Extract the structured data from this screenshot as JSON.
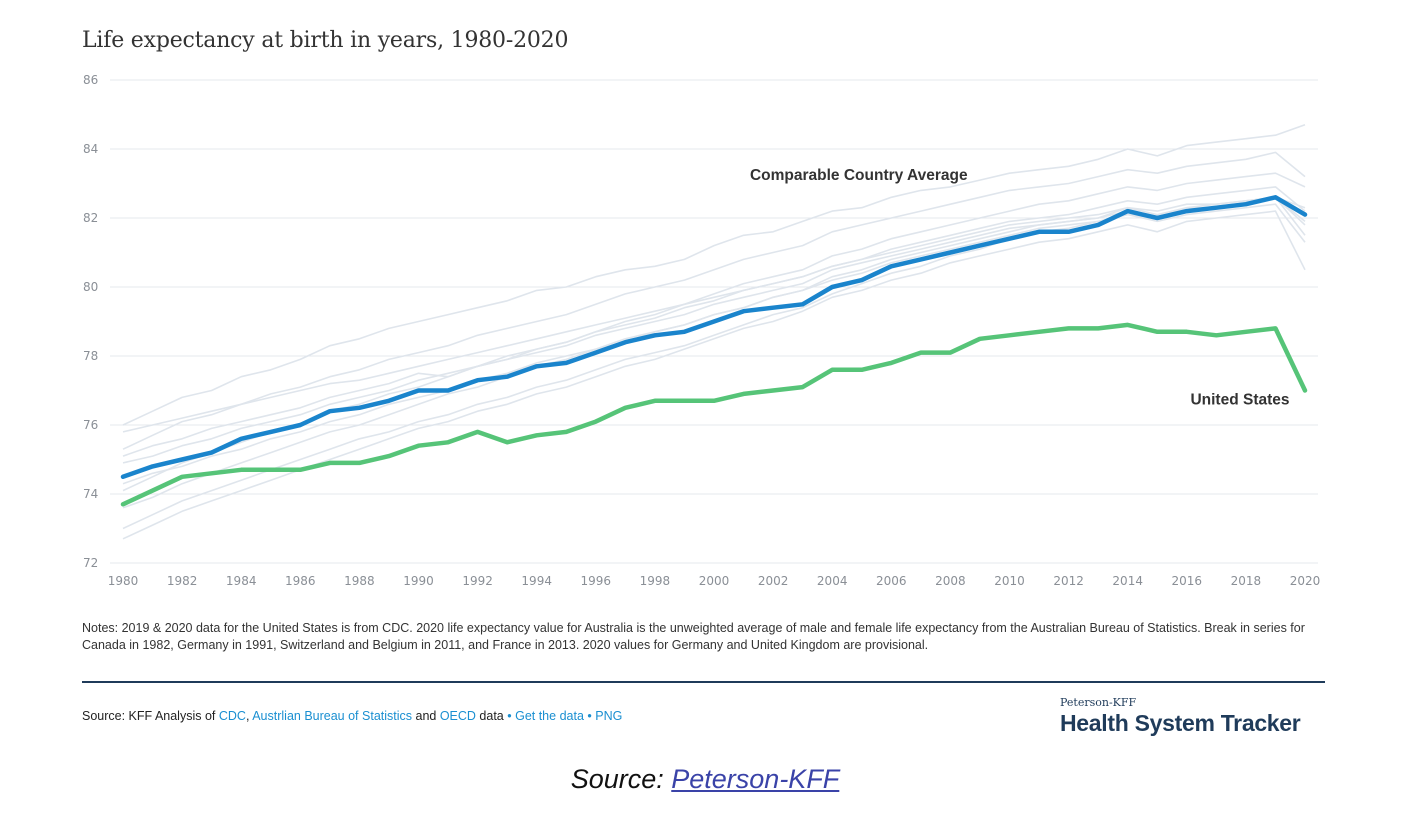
{
  "chart_data": {
    "type": "line",
    "title": "Life expectancy at birth in years, 1980-2020",
    "xlim": [
      1980,
      2020
    ],
    "ylim": [
      72,
      86
    ],
    "x_ticks": [
      1980,
      1982,
      1984,
      1986,
      1988,
      1990,
      1992,
      1994,
      1996,
      1998,
      2000,
      2002,
      2004,
      2006,
      2008,
      2010,
      2012,
      2014,
      2016,
      2018,
      2020
    ],
    "y_ticks": [
      72,
      74,
      76,
      78,
      80,
      82,
      84,
      86
    ],
    "grid": true,
    "x": [
      1980,
      1981,
      1982,
      1983,
      1984,
      1985,
      1986,
      1987,
      1988,
      1989,
      1990,
      1991,
      1992,
      1993,
      1994,
      1995,
      1996,
      1997,
      1998,
      1999,
      2000,
      2001,
      2002,
      2003,
      2004,
      2005,
      2006,
      2007,
      2008,
      2009,
      2010,
      2011,
      2012,
      2013,
      2014,
      2015,
      2016,
      2017,
      2018,
      2019,
      2020
    ],
    "series": [
      {
        "name": "Comparable Country Average",
        "color": "#1a84cc",
        "values": [
          74.5,
          74.8,
          75.0,
          75.2,
          75.6,
          75.8,
          76.0,
          76.4,
          76.5,
          76.7,
          77.0,
          77.0,
          77.3,
          77.4,
          77.7,
          77.8,
          78.1,
          78.4,
          78.6,
          78.7,
          79.0,
          79.3,
          79.4,
          79.5,
          80.0,
          80.2,
          80.6,
          80.8,
          81.0,
          81.2,
          81.4,
          81.6,
          81.6,
          81.8,
          82.2,
          82.0,
          82.2,
          82.3,
          82.4,
          82.6,
          82.1
        ]
      },
      {
        "name": "United States",
        "color": "#56c478",
        "values": [
          73.7,
          74.1,
          74.5,
          74.6,
          74.7,
          74.7,
          74.7,
          74.9,
          74.9,
          75.1,
          75.4,
          75.5,
          75.8,
          75.5,
          75.7,
          75.8,
          76.1,
          76.5,
          76.7,
          76.7,
          76.7,
          76.9,
          77.0,
          77.1,
          77.6,
          77.6,
          77.8,
          78.1,
          78.1,
          78.5,
          78.6,
          78.7,
          78.8,
          78.8,
          78.9,
          78.7,
          78.7,
          78.6,
          78.7,
          78.8,
          77.0
        ]
      }
    ],
    "background_series_color": "#dfe5ec",
    "background_series": [
      [
        76.0,
        76.4,
        76.8,
        77.0,
        77.4,
        77.6,
        77.9,
        78.3,
        78.5,
        78.8,
        79.0,
        79.2,
        79.4,
        79.6,
        79.9,
        80.0,
        80.3,
        80.5,
        80.6,
        80.8,
        81.2,
        81.5,
        81.6,
        81.9,
        82.2,
        82.3,
        82.6,
        82.8,
        82.9,
        83.1,
        83.3,
        83.4,
        83.5,
        83.7,
        84.0,
        83.8,
        84.1,
        84.2,
        84.3,
        84.4,
        84.7
      ],
      [
        75.3,
        75.7,
        76.1,
        76.3,
        76.6,
        76.9,
        77.1,
        77.4,
        77.6,
        77.9,
        78.1,
        78.3,
        78.6,
        78.8,
        79.0,
        79.2,
        79.5,
        79.8,
        80.0,
        80.2,
        80.5,
        80.8,
        81.0,
        81.2,
        81.6,
        81.8,
        82.0,
        82.2,
        82.4,
        82.6,
        82.8,
        82.9,
        83.0,
        83.2,
        83.4,
        83.3,
        83.5,
        83.6,
        83.7,
        83.9,
        83.2
      ],
      [
        74.1,
        74.5,
        74.9,
        75.2,
        75.5,
        75.8,
        76.0,
        76.4,
        76.6,
        76.9,
        77.1,
        77.4,
        77.7,
        77.9,
        78.2,
        78.4,
        78.7,
        79.0,
        79.2,
        79.5,
        79.8,
        80.1,
        80.3,
        80.5,
        80.9,
        81.1,
        81.4,
        81.6,
        81.8,
        82.0,
        82.2,
        82.4,
        82.5,
        82.7,
        82.9,
        82.8,
        83.0,
        83.1,
        83.2,
        83.3,
        82.9
      ],
      [
        73.0,
        73.4,
        73.8,
        74.1,
        74.4,
        74.7,
        75.0,
        75.3,
        75.6,
        75.8,
        76.1,
        76.3,
        76.6,
        76.8,
        77.1,
        77.3,
        77.6,
        77.9,
        78.1,
        78.3,
        78.6,
        78.9,
        79.2,
        79.4,
        79.8,
        80.1,
        80.4,
        80.6,
        80.9,
        81.1,
        81.4,
        81.6,
        81.7,
        81.9,
        82.1,
        82.0,
        82.2,
        82.3,
        82.4,
        82.6,
        81.5
      ],
      [
        72.7,
        73.1,
        73.5,
        73.8,
        74.1,
        74.4,
        74.7,
        75.0,
        75.3,
        75.6,
        75.9,
        76.1,
        76.4,
        76.6,
        76.9,
        77.1,
        77.4,
        77.7,
        77.9,
        78.2,
        78.5,
        78.8,
        79.0,
        79.3,
        79.7,
        79.9,
        80.2,
        80.4,
        80.7,
        80.9,
        81.1,
        81.3,
        81.4,
        81.6,
        81.8,
        81.6,
        81.9,
        82.0,
        82.1,
        82.2,
        80.5
      ],
      [
        75.8,
        76.0,
        76.2,
        76.4,
        76.6,
        76.8,
        77.0,
        77.2,
        77.3,
        77.5,
        77.7,
        77.9,
        78.1,
        78.3,
        78.5,
        78.7,
        78.9,
        79.1,
        79.3,
        79.5,
        79.7,
        79.9,
        80.1,
        80.3,
        80.6,
        80.8,
        81.0,
        81.2,
        81.4,
        81.6,
        81.8,
        81.9,
        82.0,
        82.1,
        82.3,
        82.2,
        82.4,
        82.4,
        82.5,
        82.6,
        82.3
      ],
      [
        74.9,
        75.1,
        75.4,
        75.6,
        75.9,
        76.1,
        76.3,
        76.6,
        76.8,
        77.0,
        77.3,
        77.5,
        77.7,
        78.0,
        78.2,
        78.4,
        78.7,
        78.9,
        79.1,
        79.4,
        79.6,
        79.9,
        80.1,
        80.3,
        80.6,
        80.8,
        81.1,
        81.3,
        81.5,
        81.7,
        81.9,
        82.0,
        82.1,
        82.3,
        82.5,
        82.4,
        82.6,
        82.7,
        82.8,
        82.9,
        82.2
      ],
      [
        73.6,
        73.9,
        74.3,
        74.6,
        74.9,
        75.2,
        75.5,
        75.8,
        76.0,
        76.3,
        76.6,
        76.9,
        77.1,
        77.4,
        77.7,
        77.9,
        78.2,
        78.4,
        78.7,
        78.9,
        79.2,
        79.4,
        79.7,
        79.9,
        80.3,
        80.5,
        80.8,
        81.0,
        81.2,
        81.4,
        81.6,
        81.8,
        81.9,
        82.0,
        82.2,
        82.0,
        82.3,
        82.3,
        82.4,
        82.6,
        81.8
      ],
      [
        74.3,
        74.6,
        74.8,
        75.1,
        75.3,
        75.6,
        75.8,
        76.1,
        76.3,
        76.6,
        76.8,
        77.0,
        77.3,
        77.5,
        77.8,
        78.0,
        78.2,
        78.5,
        78.7,
        78.9,
        79.2,
        79.4,
        79.7,
        79.9,
        80.2,
        80.4,
        80.7,
        80.9,
        81.1,
        81.3,
        81.5,
        81.7,
        81.8,
        81.9,
        82.1,
        81.9,
        82.1,
        82.2,
        82.3,
        82.4,
        81.3
      ],
      [
        75.1,
        75.4,
        75.6,
        75.9,
        76.1,
        76.3,
        76.5,
        76.8,
        77.0,
        77.2,
        77.5,
        77.4,
        77.7,
        77.9,
        78.1,
        78.3,
        78.6,
        78.8,
        79.0,
        79.2,
        79.5,
        79.7,
        79.9,
        80.1,
        80.5,
        80.7,
        80.9,
        81.1,
        81.3,
        81.5,
        81.7,
        81.8,
        81.9,
        82.0,
        82.3,
        82.1,
        82.3,
        82.4,
        82.5,
        82.6,
        81.9
      ]
    ],
    "annotations": [
      {
        "text": "Comparable Country Average",
        "x": 2004.9,
        "y": 83.1
      },
      {
        "text": "United States",
        "x": 2017.8,
        "y": 76.6
      }
    ],
    "notes": "Notes: 2019 & 2020 data for the United States is from CDC. 2020 life expectancy value for Australia is the unweighted average of male and female life expectancy from the Australian Bureau of Statistics. Break in series for Canada in 1982, Germany in 1991, Switzerland and Belgium in 2011, and France in 2013. 2020 values for Germany and United Kingdom are provisional."
  },
  "source_line": {
    "prefix": "Source: KFF Analysis of ",
    "link1": "CDC",
    "sep1": ", ",
    "link2": "Austrlian Bureau of Statistics",
    "and_text": " and ",
    "link3": "OECD",
    "data_text": " data",
    "bullet": " • ",
    "link4": "Get the data",
    "link5": "PNG"
  },
  "logo": {
    "small": "Peterson-KFF",
    "big": "Health System Tracker"
  },
  "caption": {
    "prefix": "Source: ",
    "link": "Peterson-KFF"
  }
}
